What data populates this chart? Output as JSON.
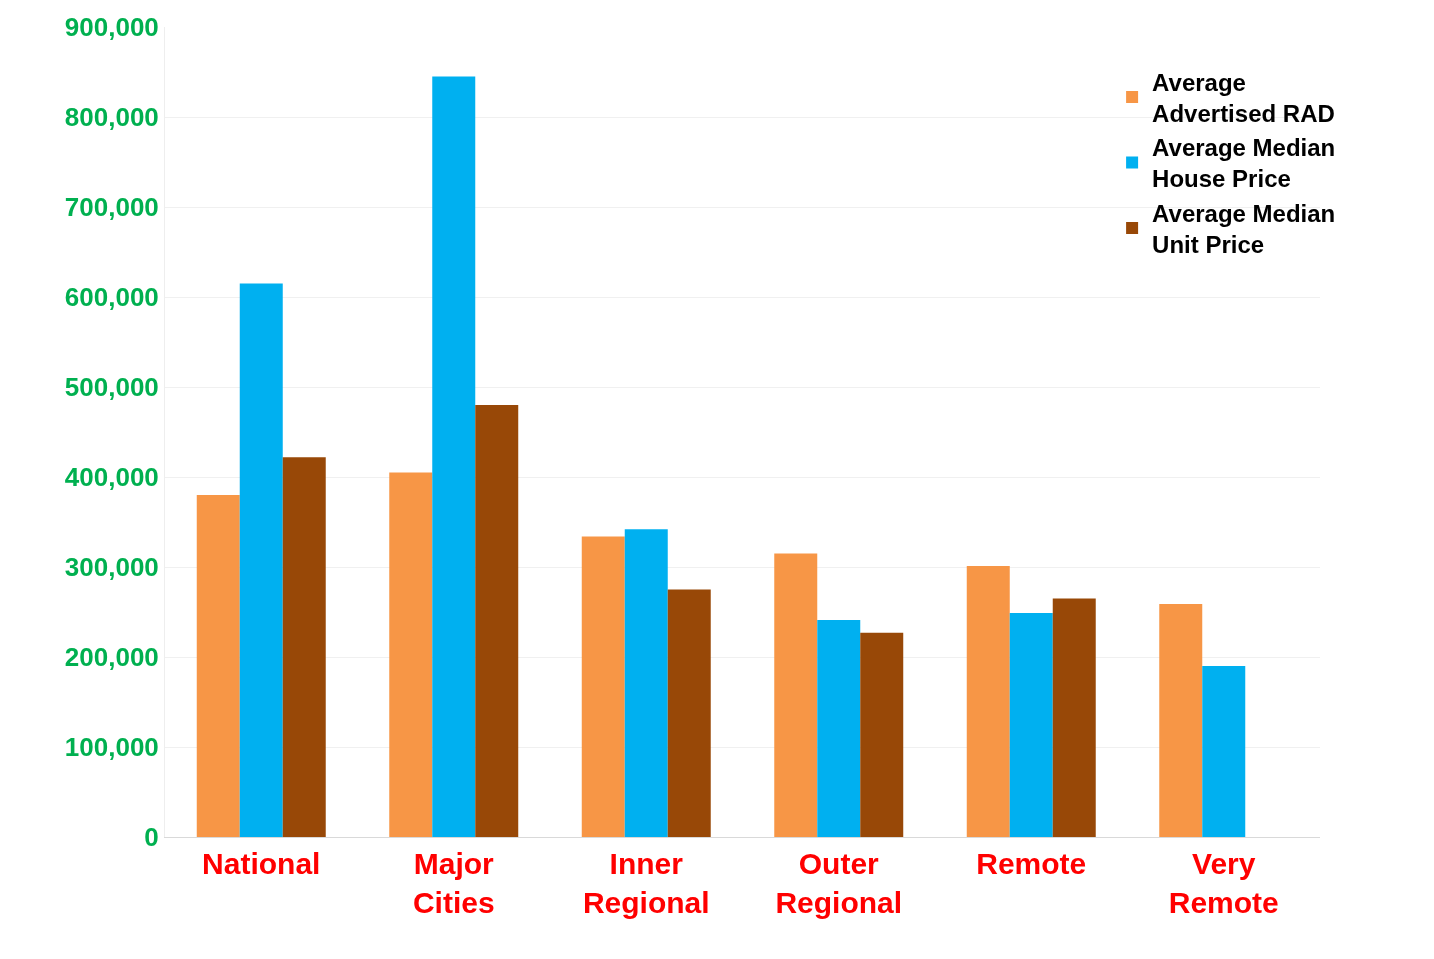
{
  "chart_data": {
    "type": "bar",
    "categories": [
      "National",
      "Major Cities",
      "Inner Regional",
      "Outer Regional",
      "Remote",
      "Very Remote"
    ],
    "series": [
      {
        "name": "Average Advertised RAD",
        "color": "#f79646",
        "values": [
          380000,
          405000,
          334000,
          315000,
          301000,
          259000
        ]
      },
      {
        "name": "Average Median House Price",
        "color": "#00b0f0",
        "values": [
          615000,
          845000,
          342000,
          241000,
          249000,
          190000
        ]
      },
      {
        "name": "Average Median Unit Price",
        "color": "#984807",
        "values": [
          422000,
          480000,
          275000,
          227000,
          265000,
          null
        ]
      }
    ],
    "ylim": [
      0,
      900000
    ],
    "yticks": [
      {
        "value": 0,
        "label": "0"
      },
      {
        "value": 100000,
        "label": "100,000"
      },
      {
        "value": 200000,
        "label": "200,000"
      },
      {
        "value": 300000,
        "label": "300,000"
      },
      {
        "value": 400000,
        "label": "400,000"
      },
      {
        "value": 500000,
        "label": "500,000"
      },
      {
        "value": 600000,
        "label": "600,000"
      },
      {
        "value": 700000,
        "label": "700,000"
      },
      {
        "value": 800000,
        "label": "800,000"
      },
      {
        "value": 900000,
        "label": "900,000"
      }
    ],
    "grid": "y",
    "legend": "top right"
  }
}
